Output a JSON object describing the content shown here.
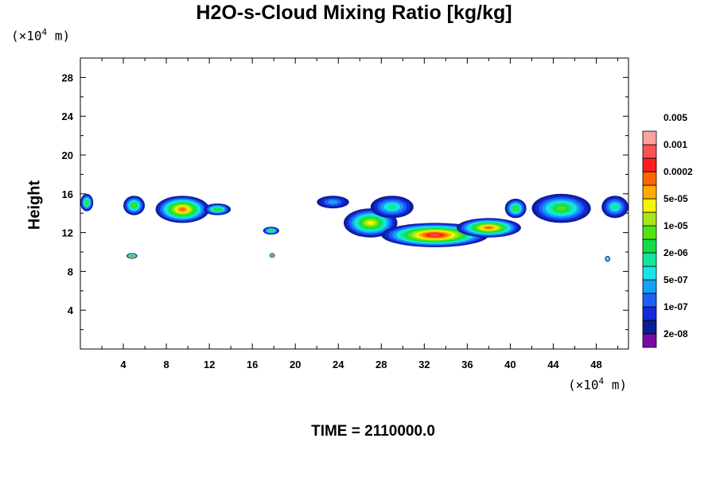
{
  "chart_data": {
    "type": "heatmap",
    "title": "H2O-s-Cloud Mixing Ratio [kg/kg]",
    "ylabel": "Height",
    "x_unit": "m",
    "y_unit": "m",
    "unit_scale": "×10",
    "unit_exponent": "4",
    "xlim": [
      0,
      51
    ],
    "ylim": [
      0,
      30
    ],
    "x_ticks": [
      "4",
      "8",
      "12",
      "16",
      "20",
      "24",
      "28",
      "32",
      "36",
      "40",
      "44",
      "48"
    ],
    "y_ticks": [
      "4",
      "8",
      "12",
      "16",
      "20",
      "24",
      "28"
    ],
    "colorbar": {
      "colors": [
        "#7a0aa8",
        "#0a1e96",
        "#1428dc",
        "#1e5ff5",
        "#14a0f5",
        "#14e6e6",
        "#14e6a0",
        "#14dc46",
        "#50e614",
        "#aae614",
        "#f5f500",
        "#ffaa00",
        "#ff6400",
        "#ff1e1e",
        "#ff5050",
        "#ffa0a0"
      ],
      "labels": [
        "2e-08",
        "1e-07",
        "5e-07",
        "2e-06",
        "1e-05",
        "5e-05",
        "0.0002",
        "0.001",
        "0.005"
      ]
    },
    "cloud_regions": [
      {
        "x": [
          0,
          1.2
        ],
        "y": [
          14.2,
          16.0
        ],
        "peak": "2e-06"
      },
      {
        "x": [
          4.0,
          6.0
        ],
        "y": [
          13.8,
          15.8
        ],
        "peak": "2e-06"
      },
      {
        "x": [
          7.0,
          12.0
        ],
        "y": [
          13.0,
          15.8
        ],
        "peak": "5e-05"
      },
      {
        "x": [
          11.5,
          14.0
        ],
        "y": [
          13.8,
          15.0
        ],
        "peak": "2e-06"
      },
      {
        "x": [
          22.0,
          25.0
        ],
        "y": [
          14.5,
          15.8
        ],
        "peak": "1e-07"
      },
      {
        "x": [
          17.0,
          18.5
        ],
        "y": [
          11.8,
          12.6
        ],
        "peak": "2e-06"
      },
      {
        "x": [
          24.5,
          29.5
        ],
        "y": [
          11.5,
          14.5
        ],
        "peak": "1e-05"
      },
      {
        "x": [
          27.0,
          31.0
        ],
        "y": [
          13.5,
          15.8
        ],
        "peak": "5e-07"
      },
      {
        "x": [
          28.0,
          38.0
        ],
        "y": [
          10.5,
          13.0
        ],
        "peak": "0.0002"
      },
      {
        "x": [
          35.0,
          41.0
        ],
        "y": [
          11.5,
          13.5
        ],
        "peak": "5e-05"
      },
      {
        "x": [
          39.5,
          41.5
        ],
        "y": [
          13.5,
          15.5
        ],
        "peak": "2e-06"
      },
      {
        "x": [
          42.0,
          47.5
        ],
        "y": [
          13.0,
          16.0
        ],
        "peak": "2e-06"
      },
      {
        "x": [
          48.5,
          51.0
        ],
        "y": [
          13.5,
          15.8
        ],
        "peak": "5e-07"
      },
      {
        "x": [
          4.3,
          5.3
        ],
        "y": [
          9.3,
          9.9
        ],
        "peak": "0.0002"
      },
      {
        "x": [
          17.6,
          18.1
        ],
        "y": [
          9.4,
          9.9
        ],
        "peak": "0.0002"
      },
      {
        "x": [
          48.8,
          49.3
        ],
        "y": [
          9.0,
          9.6
        ],
        "peak": "1e-05"
      }
    ]
  },
  "time_label": "TIME = 2110000.0"
}
